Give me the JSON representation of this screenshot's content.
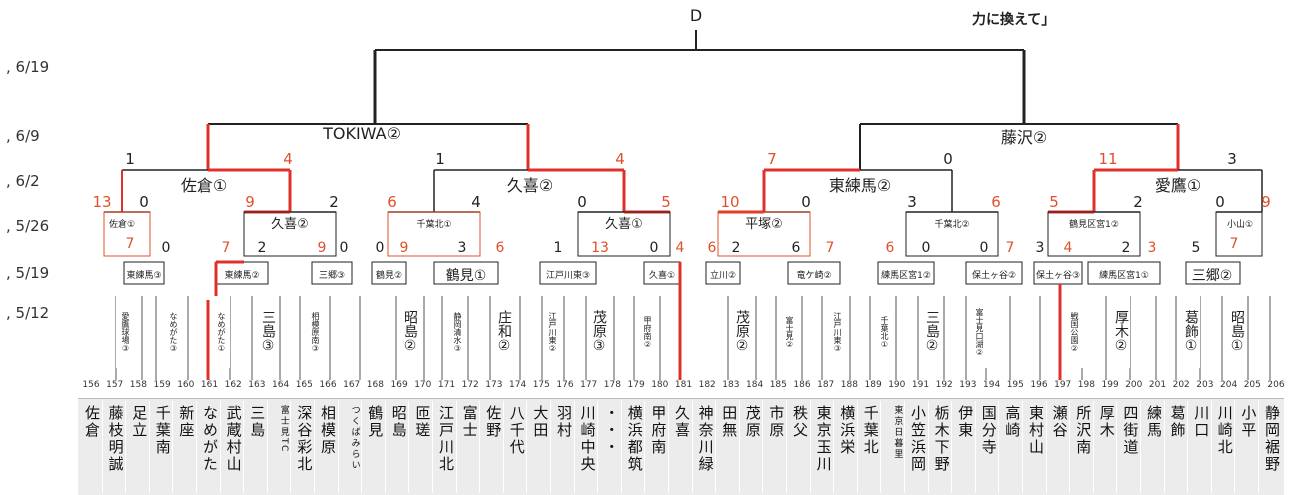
{
  "dates": [
    ", 6/19",
    ", 6/9",
    ", 6/2",
    ", 5/26",
    ", 5/19",
    ", 5/12"
  ],
  "header": {
    "final_label": "D",
    "top_right_text": "力に換えて」"
  },
  "semifinals": {
    "left": "TOKIWA②",
    "right": "藤沢②"
  },
  "quarterfinals": [
    "佐倉①",
    "久喜②",
    "東練馬②",
    "愛鷹①"
  ],
  "round_scores": {
    "s1": [
      "1",
      "4",
      "1",
      "4",
      "7",
      "0",
      "11",
      "3"
    ],
    "s2": [
      "13",
      "0",
      "9",
      "2",
      "6",
      "4",
      "0",
      "5",
      "10",
      "0",
      "3",
      "6",
      "5",
      "2",
      "0",
      "9"
    ]
  },
  "r16": [
    "佐倉①",
    "久喜②",
    "千葉北①",
    "久喜①",
    "平塚②",
    "千葉北②",
    "鶴見区宮1②",
    "小山①"
  ],
  "r16_scores": [
    "7",
    "0",
    "7",
    "2",
    "9",
    "0",
    "0",
    "9",
    "3",
    "6",
    "1",
    "13",
    "0",
    "4",
    "6",
    "2",
    "6",
    "7",
    "6",
    "0",
    "0",
    "7",
    "3",
    "4",
    "2",
    "3",
    "5",
    "7"
  ],
  "r32": [
    "東練馬③",
    "東練馬②",
    "三郷③",
    "鶴見②",
    "鶴見①",
    "江戸川東③",
    "久喜①",
    "立川②",
    "竜ケ崎②",
    "練馬区宮1②",
    "保土ヶ谷②",
    "保土ヶ谷③",
    "練馬区宮1①",
    "三郷②"
  ],
  "slots": [
    "愛鷹球場③",
    "なめがた③",
    "なめがた①",
    "三島③",
    "相模原南③",
    "昭島②",
    "静岡清水③",
    "庄和②",
    "江戸川東②",
    "茂原③",
    "甲府南②",
    "茂原②",
    "富士見②",
    "江戸川東③",
    "千葉北①",
    "三島②",
    "富士見口湖②",
    "戦国公園②",
    "厚木②",
    "葛飾①",
    "昭島①"
  ],
  "numbers": [
    "156",
    "157",
    "158",
    "159",
    "160",
    "161",
    "162",
    "163",
    "164",
    "165",
    "166",
    "167",
    "168",
    "169",
    "170",
    "171",
    "172",
    "173",
    "174",
    "175",
    "176",
    "177",
    "178",
    "179",
    "180",
    "181",
    "182",
    "183",
    "184",
    "185",
    "186",
    "187",
    "188",
    "189",
    "190",
    "191",
    "192",
    "193",
    "194",
    "195",
    "196",
    "197",
    "198",
    "199",
    "200",
    "201",
    "202",
    "203",
    "204",
    "205",
    "206"
  ],
  "teams": [
    "佐倉",
    "藤枝明誠",
    "足立",
    "千葉南",
    "新座",
    "なめがた",
    "武蔵村山",
    "三島",
    "富士見TC",
    "深谷彩北",
    "相模原",
    "つくばみらい",
    "鶴見",
    "昭島",
    "匝瑳",
    "江戸川北",
    "富士",
    "佐野",
    "八千代",
    "大田",
    "羽村",
    "川崎中央",
    "・・・",
    "横浜都筑",
    "甲府南",
    "久喜",
    "神奈川緑",
    "田無",
    "茂原",
    "市原",
    "秩父",
    "東京玉川",
    "横浜栄",
    "千葉北",
    "東京日暮里",
    "小笠浜岡",
    "栃木下野",
    "伊東",
    "国分寺",
    "高崎",
    "東村山",
    "瀬谷",
    "所沢南",
    "厚木",
    "四街道",
    "練馬",
    "葛飾",
    "川口",
    "川崎北",
    "小平",
    "静岡裾野"
  ]
}
